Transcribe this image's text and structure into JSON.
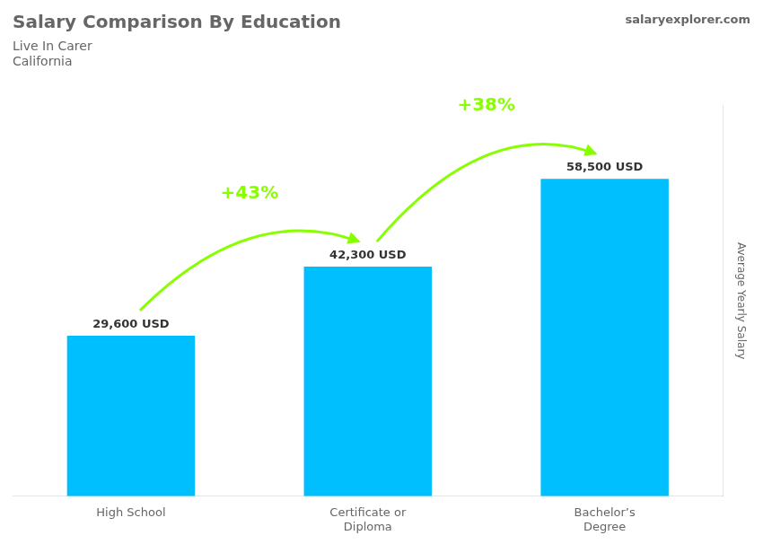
{
  "chart_data": {
    "type": "bar",
    "title": "Salary Comparison By Education",
    "subtitle": [
      "Live In Carer",
      "California"
    ],
    "source": "salaryexplorer.com",
    "y_label": "Average Yearly Salary",
    "categories": [
      "High School",
      "Certificate or\nDiploma",
      "Bachelor’s\nDegree"
    ],
    "values": [
      29600,
      42300,
      58500
    ],
    "value_labels": [
      "29,600 USD",
      "42,300 USD",
      "58,500 USD"
    ],
    "data_labels": true,
    "color": "#00BFFF",
    "annotations": [
      {
        "text": "+43%",
        "color": "#88FF00"
      },
      {
        "text": "+38%",
        "color": "#88FF00"
      }
    ],
    "ylim": [
      0,
      72000
    ],
    "tick_labels": "x",
    "grid": false
  }
}
